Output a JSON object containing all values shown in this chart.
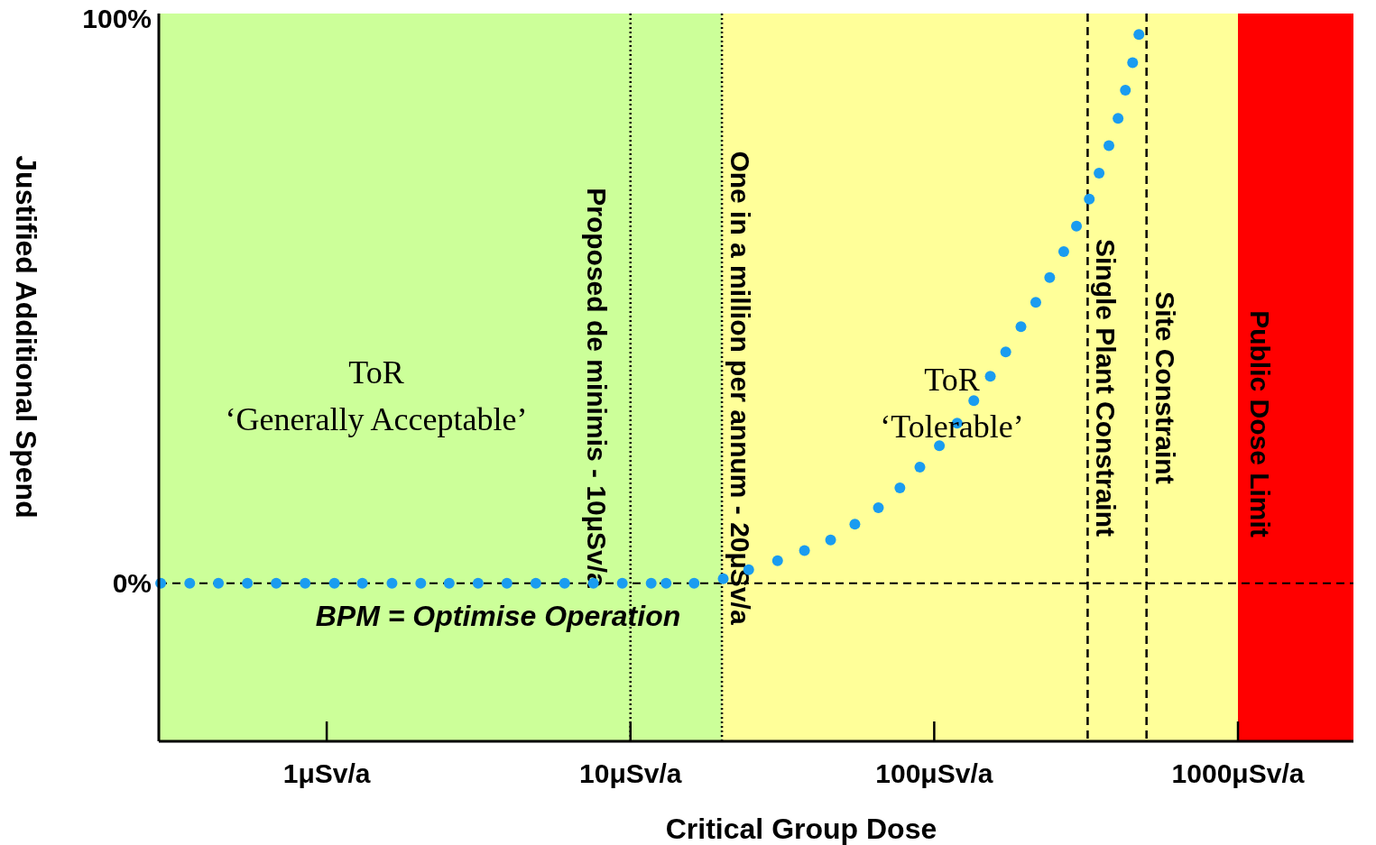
{
  "chart_data": {
    "type": "scatter",
    "xlabel": "Critical Group Dose",
    "ylabel": "Justified Additional Spend",
    "log": "x",
    "xlim": [
      0.28,
      2400
    ],
    "ylim": [
      -28,
      101
    ],
    "xticks": [
      {
        "value": 1,
        "label": "1μSv/a"
      },
      {
        "value": 10,
        "label": "10μSv/a"
      },
      {
        "value": 100,
        "label": "100μSv/a"
      },
      {
        "value": 1000,
        "label": "1000μSv/a"
      }
    ],
    "yticks": [
      {
        "value": 0,
        "label": "0%"
      },
      {
        "value": 100,
        "label": "100%"
      }
    ],
    "marker": "circle",
    "series": [
      {
        "color": "#1a9cf0",
        "x": [
          0.284,
          0.354,
          0.44,
          0.548,
          0.682,
          0.849,
          1.06,
          1.31,
          1.64,
          2.04,
          2.53,
          3.15,
          3.92,
          4.88,
          6.07,
          7.55,
          9.4,
          11.7,
          13.1,
          16.2,
          20.2,
          24.5,
          30.5,
          37.4,
          45.6,
          54.8,
          65.5,
          77.1,
          89.7,
          104,
          119,
          135,
          153,
          172,
          193,
          216,
          240,
          267,
          294,
          324,
          349,
          376,
          403,
          426,
          450,
          472
        ],
        "values": [
          0,
          0,
          0,
          0,
          0,
          0,
          0,
          0,
          0,
          0,
          0,
          0,
          0,
          0,
          0,
          0,
          0,
          0,
          0,
          0,
          0.8,
          2.4,
          4,
          5.8,
          7.7,
          10.5,
          13.4,
          16.9,
          20.6,
          24.4,
          28.4,
          32.4,
          36.7,
          41,
          45.5,
          49.8,
          54.2,
          58.8,
          63.3,
          68.1,
          72.7,
          77.6,
          82.4,
          87.4,
          92.3,
          97.3
        ]
      }
    ],
    "bands": [
      {
        "axis": "x",
        "from": 0.28,
        "to": 20,
        "color": "#ccff99"
      },
      {
        "axis": "x",
        "from": 20,
        "to": 1000,
        "color": "#ffff99"
      },
      {
        "axis": "x",
        "from": 1000,
        "to": 2400,
        "color": "#ff0000",
        "label": "Public Dose Limit"
      }
    ],
    "ref_lines": [
      {
        "axis": "x",
        "value": 10,
        "label": "Proposed de minimis - 10μSv/a",
        "line_style": "dotted"
      },
      {
        "axis": "x",
        "value": 20,
        "label": "One in a million per annum - 20μSv/a",
        "line_style": "dotted"
      },
      {
        "axis": "x",
        "value": 320,
        "label": "Single Plant Constraint",
        "line_style": "dashed"
      },
      {
        "axis": "x",
        "value": 500,
        "label": "Site Constraint",
        "line_style": "dashed"
      },
      {
        "axis": "y",
        "value": 0,
        "line_style": "dashed"
      }
    ],
    "annotations": [
      "ToR\n‘Generally Acceptable’",
      "ToR\n‘Tolerable’",
      "BPM = Optimise Operation"
    ]
  }
}
